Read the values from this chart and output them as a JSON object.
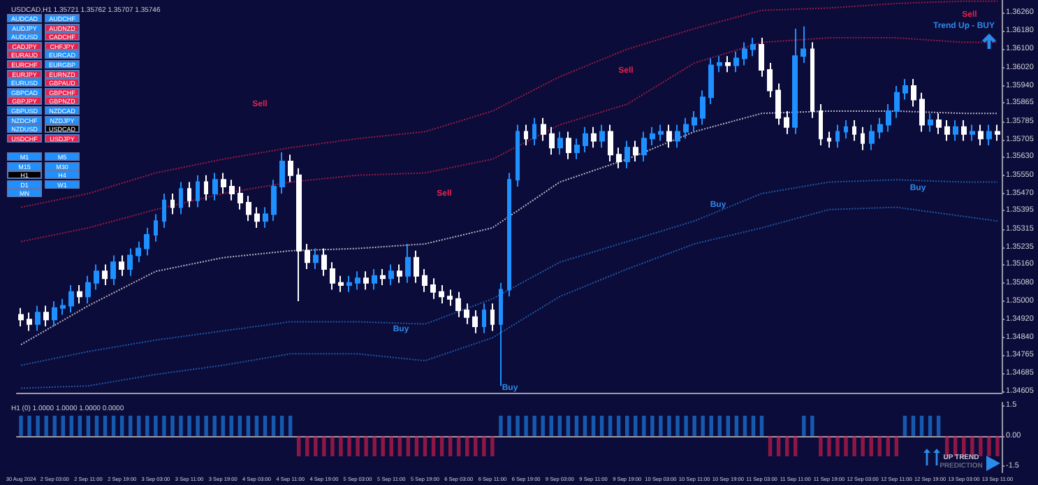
{
  "chart_data": [
    {
      "type": "candlestick",
      "title": "USDCAD,H1 1.35721 1.35762 1.35707 1.35746",
      "categories": [
        "30 Aug 2024",
        null,
        null,
        null,
        "2 Sep 03:00",
        null,
        null,
        null,
        "2 Sep 11:00",
        null,
        null,
        null,
        "2 Sep 19:00",
        null,
        null,
        null,
        "3 Sep 03:00",
        null,
        null,
        null,
        "3 Sep 11:00",
        null,
        null,
        null,
        "3 Sep 19:00",
        null,
        null,
        null,
        "4 Sep 03:00",
        null,
        null,
        null,
        "4 Sep 11:00",
        null,
        null,
        null,
        "4 Sep 19:00",
        null,
        null,
        null,
        "5 Sep 03:00",
        null,
        null,
        null,
        "5 Sep 11:00",
        null,
        null,
        null,
        "5 Sep 19:00",
        null,
        null,
        null,
        "6 Sep 03:00",
        null,
        null,
        null,
        "6 Sep 11:00",
        null,
        null,
        null,
        "6 Sep 19:00",
        null,
        null,
        null,
        "9 Sep 03:00",
        null,
        null,
        null,
        "9 Sep 11:00",
        null,
        null,
        null,
        "9 Sep 19:00",
        null,
        null,
        null,
        "10 Sep 03:00",
        null,
        null,
        null,
        "10 Sep 11:00",
        null,
        null,
        null,
        "10 Sep 19:00",
        null,
        null,
        null,
        "11 Sep 03:00",
        null,
        null,
        null,
        "11 Sep 11:00",
        null,
        null,
        null,
        "11 Sep 19:00",
        null,
        null,
        null,
        "12 Sep 03:00",
        null,
        null,
        null,
        "12 Sep 11:00",
        null,
        null,
        null,
        "12 Sep 19:00",
        null,
        null,
        null,
        "13 Sep 03:00",
        null,
        null,
        null,
        "13 Sep 11:00"
      ],
      "ohlc": [
        [
          1.3494,
          1.3497,
          1.3489,
          1.3492
        ],
        [
          1.3492,
          1.3495,
          1.3487,
          1.349
        ],
        [
          1.349,
          1.3498,
          1.3487,
          1.3495
        ],
        [
          1.3495,
          1.3498,
          1.3489,
          1.3492
        ],
        [
          1.3492,
          1.35,
          1.3489,
          1.3497
        ],
        [
          1.3497,
          1.3501,
          1.3494,
          1.3498
        ],
        [
          1.3498,
          1.3507,
          1.3495,
          1.3504
        ],
        [
          1.3504,
          1.3507,
          1.3499,
          1.3502
        ],
        [
          1.3502,
          1.3511,
          1.3499,
          1.3508
        ],
        [
          1.3508,
          1.3516,
          1.3505,
          1.3513
        ],
        [
          1.3513,
          1.3516,
          1.3507,
          1.351
        ],
        [
          1.351,
          1.352,
          1.3507,
          1.3517
        ],
        [
          1.3517,
          1.352,
          1.3511,
          1.3514
        ],
        [
          1.3514,
          1.3523,
          1.3511,
          1.352
        ],
        [
          1.352,
          1.3526,
          1.3517,
          1.3523
        ],
        [
          1.3523,
          1.3532,
          1.352,
          1.3529
        ],
        [
          1.3529,
          1.3538,
          1.3526,
          1.3535
        ],
        [
          1.3535,
          1.3547,
          1.3532,
          1.3544
        ],
        [
          1.3544,
          1.3547,
          1.3538,
          1.3541
        ],
        [
          1.3541,
          1.3552,
          1.3538,
          1.3549
        ],
        [
          1.3549,
          1.3552,
          1.3541,
          1.3544
        ],
        [
          1.3544,
          1.3555,
          1.3541,
          1.3552
        ],
        [
          1.3552,
          1.3555,
          1.3544,
          1.3547
        ],
        [
          1.3547,
          1.3556,
          1.3544,
          1.3553
        ],
        [
          1.3553,
          1.3556,
          1.3547,
          1.355
        ],
        [
          1.355,
          1.3553,
          1.3544,
          1.3547
        ],
        [
          1.3547,
          1.355,
          1.354,
          1.3543
        ],
        [
          1.3543,
          1.3546,
          1.3535,
          1.3538
        ],
        [
          1.3538,
          1.3541,
          1.3532,
          1.3535
        ],
        [
          1.3535,
          1.3541,
          1.3532,
          1.3538
        ],
        [
          1.3538,
          1.3553,
          1.3535,
          1.355
        ],
        [
          1.355,
          1.3565,
          1.3547,
          1.3561
        ],
        [
          1.3561,
          1.3564,
          1.3552,
          1.3555
        ],
        [
          1.3555,
          1.3558,
          1.35,
          1.3522
        ],
        [
          1.3522,
          1.3525,
          1.3514,
          1.3517
        ],
        [
          1.3517,
          1.3523,
          1.3514,
          1.352
        ],
        [
          1.352,
          1.3523,
          1.3511,
          1.3514
        ],
        [
          1.3514,
          1.3517,
          1.3505,
          1.3508
        ],
        [
          1.3508,
          1.3511,
          1.3504,
          1.3507
        ],
        [
          1.3507,
          1.3511,
          1.3504,
          1.3508
        ],
        [
          1.3508,
          1.3513,
          1.3505,
          1.351
        ],
        [
          1.351,
          1.3513,
          1.3505,
          1.3508
        ],
        [
          1.3508,
          1.3514,
          1.3505,
          1.3511
        ],
        [
          1.3511,
          1.3514,
          1.3507,
          1.351
        ],
        [
          1.351,
          1.3516,
          1.3507,
          1.3513
        ],
        [
          1.3513,
          1.3516,
          1.3508,
          1.3511
        ],
        [
          1.3511,
          1.3525,
          1.3508,
          1.3519
        ],
        [
          1.3519,
          1.3522,
          1.3508,
          1.3511
        ],
        [
          1.3511,
          1.3514,
          1.3504,
          1.3507
        ],
        [
          1.3507,
          1.351,
          1.3501,
          1.3504
        ],
        [
          1.3504,
          1.3507,
          1.3499,
          1.3502
        ],
        [
          1.3502,
          1.3505,
          1.3498,
          1.3501
        ],
        [
          1.3501,
          1.3504,
          1.3493,
          1.3496
        ],
        [
          1.3496,
          1.3499,
          1.349,
          1.3493
        ],
        [
          1.3493,
          1.3496,
          1.3486,
          1.3489
        ],
        [
          1.3489,
          1.3499,
          1.3486,
          1.3496
        ],
        [
          1.3496,
          1.3499,
          1.3487,
          1.349
        ],
        [
          1.349,
          1.3508,
          1.3463,
          1.3505
        ],
        [
          1.3505,
          1.3556,
          1.3502,
          1.3553
        ],
        [
          1.3553,
          1.3577,
          1.355,
          1.3574
        ],
        [
          1.3574,
          1.3577,
          1.3568,
          1.3571
        ],
        [
          1.3571,
          1.358,
          1.3568,
          1.3577
        ],
        [
          1.3577,
          1.358,
          1.357,
          1.3573
        ],
        [
          1.3573,
          1.3576,
          1.3564,
          1.3567
        ],
        [
          1.3567,
          1.3574,
          1.3564,
          1.3571
        ],
        [
          1.3571,
          1.3574,
          1.3562,
          1.3565
        ],
        [
          1.3565,
          1.3571,
          1.3562,
          1.3568
        ],
        [
          1.3568,
          1.3576,
          1.3565,
          1.3573
        ],
        [
          1.3573,
          1.3576,
          1.3567,
          1.357
        ],
        [
          1.357,
          1.3577,
          1.3567,
          1.3574
        ],
        [
          1.3574,
          1.3577,
          1.3561,
          1.3564
        ],
        [
          1.3564,
          1.3567,
          1.3558,
          1.3561
        ],
        [
          1.3561,
          1.357,
          1.3558,
          1.3567
        ],
        [
          1.3567,
          1.357,
          1.3561,
          1.3564
        ],
        [
          1.3564,
          1.3574,
          1.3561,
          1.3571
        ],
        [
          1.3571,
          1.3576,
          1.3568,
          1.3573
        ],
        [
          1.3573,
          1.3577,
          1.357,
          1.3574
        ],
        [
          1.3574,
          1.3577,
          1.3567,
          1.357
        ],
        [
          1.357,
          1.3577,
          1.3567,
          1.3574
        ],
        [
          1.3574,
          1.358,
          1.3571,
          1.3577
        ],
        [
          1.3577,
          1.3583,
          1.3574,
          1.358
        ],
        [
          1.358,
          1.3592,
          1.3577,
          1.3589
        ],
        [
          1.3589,
          1.3606,
          1.3586,
          1.3603
        ],
        [
          1.3603,
          1.3607,
          1.36,
          1.3604
        ],
        [
          1.3604,
          1.3607,
          1.36,
          1.3603
        ],
        [
          1.3603,
          1.3609,
          1.36,
          1.3606
        ],
        [
          1.3606,
          1.3613,
          1.3603,
          1.361
        ],
        [
          1.361,
          1.3615,
          1.3607,
          1.3612
        ],
        [
          1.3612,
          1.3615,
          1.3598,
          1.3601
        ],
        [
          1.3601,
          1.3604,
          1.3589,
          1.3592
        ],
        [
          1.3592,
          1.3595,
          1.3577,
          1.358
        ],
        [
          1.358,
          1.3583,
          1.3573,
          1.3576
        ],
        [
          1.3576,
          1.3619,
          1.3573,
          1.3607
        ],
        [
          1.3607,
          1.362,
          1.3604,
          1.361
        ],
        [
          1.361,
          1.3613,
          1.358,
          1.3583
        ],
        [
          1.3583,
          1.3586,
          1.3568,
          1.3571
        ],
        [
          1.3571,
          1.3574,
          1.3567,
          1.357
        ],
        [
          1.357,
          1.3577,
          1.3567,
          1.3574
        ],
        [
          1.3574,
          1.3579,
          1.3571,
          1.3576
        ],
        [
          1.3576,
          1.3579,
          1.357,
          1.3573
        ],
        [
          1.3573,
          1.3576,
          1.3566,
          1.3569
        ],
        [
          1.3569,
          1.3577,
          1.3566,
          1.3574
        ],
        [
          1.3574,
          1.358,
          1.3571,
          1.3577
        ],
        [
          1.3577,
          1.3586,
          1.3574,
          1.3583
        ],
        [
          1.3583,
          1.3594,
          1.358,
          1.3591
        ],
        [
          1.3591,
          1.3597,
          1.3588,
          1.3594
        ],
        [
          1.3594,
          1.3597,
          1.3585,
          1.3588
        ],
        [
          1.3588,
          1.3591,
          1.3574,
          1.3577
        ],
        [
          1.3577,
          1.3582,
          1.3574,
          1.3579
        ],
        [
          1.3579,
          1.3582,
          1.3573,
          1.3576
        ],
        [
          1.3576,
          1.3579,
          1.357,
          1.3573
        ],
        [
          1.3573,
          1.3579,
          1.357,
          1.3576
        ],
        [
          1.3576,
          1.3579,
          1.357,
          1.3573
        ],
        [
          1.3573,
          1.3577,
          1.357,
          1.3574
        ],
        [
          1.3574,
          1.3577,
          1.3568,
          1.3571
        ],
        [
          1.3571,
          1.3577,
          1.3568,
          1.3574
        ],
        [
          1.3574,
          1.3577,
          1.357,
          1.3573
        ]
      ],
      "colors": [
        "#ffffff",
        "#ffffff",
        "#1e90ff",
        "#ffffff",
        "#1e90ff",
        "#1e90ff",
        "#1e90ff",
        "#ffffff",
        "#1e90ff",
        "#1e90ff",
        "#ffffff",
        "#1e90ff",
        "#ffffff",
        "#1e90ff",
        "#1e90ff",
        "#1e90ff",
        "#1e90ff",
        "#1e90ff",
        "#ffffff",
        "#1e90ff",
        "#ffffff",
        "#1e90ff",
        "#ffffff",
        "#1e90ff",
        "#ffffff",
        "#ffffff",
        "#ffffff",
        "#ffffff",
        "#ffffff",
        "#1e90ff",
        "#1e90ff",
        "#1e90ff",
        "#ffffff",
        "#ffffff",
        "#ffffff",
        "#1e90ff",
        "#ffffff",
        "#ffffff",
        "#ffffff",
        "#1e90ff",
        "#1e90ff",
        "#ffffff",
        "#1e90ff",
        "#ffffff",
        "#1e90ff",
        "#ffffff",
        "#1e90ff",
        "#ffffff",
        "#ffffff",
        "#ffffff",
        "#ffffff",
        "#ffffff",
        "#ffffff",
        "#ffffff",
        "#ffffff",
        "#1e90ff",
        "#ffffff",
        "#1e90ff",
        "#1e90ff",
        "#1e90ff",
        "#ffffff",
        "#1e90ff",
        "#ffffff",
        "#ffffff",
        "#1e90ff",
        "#ffffff",
        "#1e90ff",
        "#1e90ff",
        "#ffffff",
        "#1e90ff",
        "#ffffff",
        "#ffffff",
        "#1e90ff",
        "#ffffff",
        "#1e90ff",
        "#1e90ff",
        "#1e90ff",
        "#ffffff",
        "#1e90ff",
        "#1e90ff",
        "#1e90ff",
        "#1e90ff",
        "#1e90ff",
        "#1e90ff",
        "#ffffff",
        "#1e90ff",
        "#1e90ff",
        "#1e90ff",
        "#ffffff",
        "#ffffff",
        "#ffffff",
        "#ffffff",
        "#1e90ff",
        "#1e90ff",
        "#ffffff",
        "#ffffff",
        "#ffffff",
        "#1e90ff",
        "#1e90ff",
        "#ffffff",
        "#ffffff",
        "#1e90ff",
        "#1e90ff",
        "#1e90ff",
        "#1e90ff",
        "#1e90ff",
        "#ffffff",
        "#ffffff",
        "#1e90ff",
        "#ffffff",
        "#ffffff",
        "#1e90ff",
        "#ffffff",
        "#1e90ff",
        "#ffffff",
        "#1e90ff",
        "#ffffff"
      ],
      "series": [
        {
          "type": "line",
          "color": "#b4b4c8",
          "x": [
            "30 Aug 2024",
            "2 Sep 11:00",
            "3 Sep 03:00",
            "3 Sep 19:00",
            "4 Sep 11:00",
            "5 Sep 03:00",
            "5 Sep 19:00",
            "6 Sep 11:00",
            "9 Sep 03:00",
            "9 Sep 19:00",
            "10 Sep 11:00",
            "11 Sep 03:00",
            "11 Sep 19:00",
            "12 Sep 11:00",
            "13 Sep 03:00",
            "13 Sep 11:00"
          ],
          "values": [
            1.3481,
            1.3498,
            1.3513,
            1.3519,
            1.3522,
            1.3523,
            1.3525,
            1.3532,
            1.3552,
            1.3562,
            1.3574,
            1.3582,
            1.3583,
            1.3583,
            1.3582,
            1.3582
          ]
        },
        {
          "type": "line",
          "color": "#9b1b45",
          "x": [
            "30 Aug 2024",
            "2 Sep 11:00",
            "3 Sep 03:00",
            "3 Sep 19:00",
            "4 Sep 11:00",
            "5 Sep 03:00",
            "5 Sep 19:00",
            "6 Sep 11:00",
            "9 Sep 03:00",
            "9 Sep 19:00",
            "10 Sep 11:00",
            "11 Sep 03:00",
            "11 Sep 19:00",
            "12 Sep 11:00",
            "13 Sep 03:00",
            "13 Sep 11:00"
          ],
          "values": [
            1.3541,
            1.3547,
            1.3556,
            1.3562,
            1.3567,
            1.3571,
            1.3574,
            1.3583,
            1.3598,
            1.361,
            1.3619,
            1.3627,
            1.3628,
            1.363,
            1.3631,
            1.3631
          ]
        },
        {
          "type": "line",
          "color": "#9b1b45",
          "x": [
            "30 Aug 2024",
            "2 Sep 11:00",
            "3 Sep 03:00",
            "3 Sep 19:00",
            "4 Sep 11:00",
            "5 Sep 03:00",
            "5 Sep 19:00",
            "6 Sep 11:00",
            "9 Sep 03:00",
            "9 Sep 19:00",
            "10 Sep 11:00",
            "11 Sep 03:00",
            "11 Sep 19:00",
            "12 Sep 11:00",
            "13 Sep 03:00",
            "13 Sep 11:00"
          ],
          "values": [
            1.3526,
            1.3532,
            1.354,
            1.3547,
            1.3552,
            1.3555,
            1.3556,
            1.3562,
            1.3577,
            1.3586,
            1.3604,
            1.3613,
            1.3615,
            1.3615,
            1.3613,
            1.3613
          ]
        },
        {
          "type": "line",
          "color": "#1d5aa8",
          "x": [
            "30 Aug 2024",
            "2 Sep 11:00",
            "3 Sep 03:00",
            "3 Sep 19:00",
            "4 Sep 11:00",
            "5 Sep 03:00",
            "5 Sep 19:00",
            "6 Sep 11:00",
            "9 Sep 03:00",
            "9 Sep 19:00",
            "10 Sep 11:00",
            "11 Sep 03:00",
            "11 Sep 19:00",
            "12 Sep 11:00",
            "13 Sep 03:00",
            "13 Sep 11:00"
          ],
          "values": [
            1.3472,
            1.3478,
            1.3483,
            1.3487,
            1.3491,
            1.3491,
            1.349,
            1.3501,
            1.3517,
            1.3526,
            1.3535,
            1.3547,
            1.3552,
            1.3553,
            1.3552,
            1.3552
          ]
        },
        {
          "type": "line",
          "color": "#1d5aa8",
          "x": [
            "30 Aug 2024",
            "2 Sep 11:00",
            "3 Sep 03:00",
            "3 Sep 19:00",
            "4 Sep 11:00",
            "5 Sep 03:00",
            "5 Sep 19:00",
            "6 Sep 11:00",
            "9 Sep 03:00",
            "9 Sep 19:00",
            "10 Sep 11:00",
            "11 Sep 03:00",
            "11 Sep 19:00",
            "12 Sep 11:00",
            "13 Sep 03:00",
            "13 Sep 11:00"
          ],
          "values": [
            1.3462,
            1.3463,
            1.3468,
            1.3472,
            1.3477,
            1.3477,
            1.3474,
            1.3484,
            1.3502,
            1.3514,
            1.3525,
            1.3532,
            1.354,
            1.3541,
            1.3537,
            1.3535
          ]
        }
      ],
      "line_style": "dotted",
      "marker": "none",
      "ylim": [
        1.346,
        1.36315
      ],
      "yticks": [
        {
          "value": 1.3626,
          "label": "1.36260"
        },
        {
          "value": 1.3618,
          "label": "1.36180"
        },
        {
          "value": 1.361,
          "label": "1.36100"
        },
        {
          "value": 1.3602,
          "label": "1.36020"
        },
        {
          "value": 1.3594,
          "label": "1.35940"
        },
        {
          "value": 1.35865,
          "label": "1.35865"
        },
        {
          "value": 1.35785,
          "label": "1.35785"
        },
        {
          "value": 1.35705,
          "label": "1.35705"
        },
        {
          "value": 1.3563,
          "label": "1.35630"
        },
        {
          "value": 1.3555,
          "label": "1.35550"
        },
        {
          "value": 1.3547,
          "label": "1.35470"
        },
        {
          "value": 1.35395,
          "label": "1.35395"
        },
        {
          "value": 1.35315,
          "label": "1.35315"
        },
        {
          "value": 1.35235,
          "label": "1.35235"
        },
        {
          "value": 1.3516,
          "label": "1.35160"
        },
        {
          "value": 1.3508,
          "label": "1.35080"
        },
        {
          "value": 1.35,
          "label": "1.35000"
        },
        {
          "value": 1.3492,
          "label": "1.34920"
        },
        {
          "value": 1.3484,
          "label": "1.34840"
        },
        {
          "value": 1.34765,
          "label": "1.34765"
        },
        {
          "value": 1.34685,
          "label": "1.34685"
        },
        {
          "value": 1.34605,
          "label": "1.34605"
        }
      ],
      "tick_labels": "y",
      "annotations": [
        "Sell",
        "Sell",
        "Sell",
        "Sell",
        "Buy",
        "Buy",
        "Buy",
        "Buy",
        "Trend Up - BUY"
      ]
    },
    {
      "type": "bar",
      "title": "H1 (0) 1.0000 1.0000 1.0000 0.0000",
      "categories": [
        "30 Aug 2024",
        null,
        null,
        null,
        "2 Sep 03:00",
        null,
        null,
        null,
        "2 Sep 11:00",
        null,
        null,
        null,
        "2 Sep 19:00",
        null,
        null,
        null,
        "3 Sep 03:00",
        null,
        null,
        null,
        "3 Sep 11:00",
        null,
        null,
        null,
        "3 Sep 19:00",
        null,
        null,
        null,
        "4 Sep 03:00",
        null,
        null,
        null,
        "4 Sep 11:00",
        null,
        null,
        null,
        "4 Sep 19:00",
        null,
        null,
        null,
        "5 Sep 03:00",
        null,
        null,
        null,
        "5 Sep 11:00",
        null,
        null,
        null,
        "5 Sep 19:00",
        null,
        null,
        null,
        "6 Sep 03:00",
        null,
        null,
        null,
        "6 Sep 11:00",
        null,
        null,
        null,
        "6 Sep 19:00",
        null,
        null,
        null,
        "9 Sep 03:00",
        null,
        null,
        null,
        "9 Sep 11:00",
        null,
        null,
        null,
        "9 Sep 19:00",
        null,
        null,
        null,
        "10 Sep 03:00",
        null,
        null,
        null,
        "10 Sep 11:00",
        null,
        null,
        null,
        "10 Sep 19:00",
        null,
        null,
        null,
        "11 Sep 03:00",
        null,
        null,
        null,
        "11 Sep 11:00",
        null,
        null,
        null,
        "11 Sep 19:00",
        null,
        null,
        null,
        "12 Sep 03:00",
        null,
        null,
        null,
        "12 Sep 11:00",
        null,
        null,
        null,
        "12 Sep 19:00",
        null,
        null,
        null,
        "13 Sep 03:00",
        null,
        null,
        null,
        "13 Sep 11:00"
      ],
      "values": [
        1,
        1,
        1,
        1,
        1,
        1,
        1,
        1,
        1,
        1,
        1,
        1,
        1,
        1,
        1,
        1,
        1,
        1,
        1,
        1,
        1,
        1,
        1,
        1,
        1,
        1,
        1,
        1,
        1,
        1,
        1,
        1,
        1,
        -1,
        -1,
        -1,
        -1,
        -1,
        -1,
        -1,
        -1,
        -1,
        -1,
        -1,
        -1,
        -1,
        -1,
        -1,
        -1,
        -1,
        -1,
        -1,
        -1,
        -1,
        -1,
        -1,
        -1,
        1,
        1,
        1,
        1,
        1,
        1,
        1,
        1,
        1,
        1,
        1,
        1,
        1,
        1,
        1,
        1,
        1,
        1,
        1,
        1,
        1,
        1,
        1,
        1,
        1,
        1,
        1,
        1,
        1,
        1,
        1,
        1,
        -1,
        -1,
        -1,
        -1,
        1,
        1,
        -1,
        -1,
        -1,
        -1,
        -1,
        -1,
        -1,
        -1,
        -1,
        -1,
        1,
        1,
        1,
        1,
        1,
        -1,
        -1,
        -1,
        -1,
        -1,
        -1,
        -1
      ],
      "colors": [
        "#1e90ff",
        "#1e90ff",
        "#1e90ff",
        "#1e90ff",
        "#1e90ff",
        "#1e90ff",
        "#1e90ff",
        "#1e90ff",
        "#1e90ff",
        "#1e90ff",
        "#1e90ff",
        "#1e90ff",
        "#1e90ff",
        "#1e90ff",
        "#1e90ff",
        "#1e90ff",
        "#1e90ff",
        "#1e90ff",
        "#1e90ff",
        "#1e90ff",
        "#1e90ff",
        "#1e90ff",
        "#1e90ff",
        "#1e90ff",
        "#1e90ff",
        "#1e90ff",
        "#1e90ff",
        "#1e90ff",
        "#1e90ff",
        "#1e90ff",
        "#1e90ff",
        "#1e90ff",
        "#1e90ff",
        "#e8204c",
        "#e8204c",
        "#e8204c",
        "#e8204c",
        "#e8204c",
        "#e8204c",
        "#e8204c",
        "#e8204c",
        "#e8204c",
        "#e8204c",
        "#e8204c",
        "#e8204c",
        "#e8204c",
        "#e8204c",
        "#e8204c",
        "#e8204c",
        "#e8204c",
        "#e8204c",
        "#e8204c",
        "#e8204c",
        "#e8204c",
        "#e8204c",
        "#e8204c",
        "#e8204c",
        "#1e90ff",
        "#1e90ff",
        "#1e90ff",
        "#1e90ff",
        "#1e90ff",
        "#1e90ff",
        "#1e90ff",
        "#1e90ff",
        "#1e90ff",
        "#1e90ff",
        "#1e90ff",
        "#1e90ff",
        "#1e90ff",
        "#1e90ff",
        "#1e90ff",
        "#1e90ff",
        "#1e90ff",
        "#1e90ff",
        "#1e90ff",
        "#1e90ff",
        "#1e90ff",
        "#1e90ff",
        "#1e90ff",
        "#1e90ff",
        "#1e90ff",
        "#1e90ff",
        "#1e90ff",
        "#1e90ff",
        "#1e90ff",
        "#1e90ff",
        "#1e90ff",
        "#1e90ff",
        "#e8204c",
        "#e8204c",
        "#e8204c",
        "#e8204c",
        "#1e90ff",
        "#1e90ff",
        "#e8204c",
        "#e8204c",
        "#e8204c",
        "#e8204c",
        "#e8204c",
        "#e8204c",
        "#e8204c",
        "#e8204c",
        "#e8204c",
        "#e8204c",
        "#1e90ff",
        "#1e90ff",
        "#1e90ff",
        "#1e90ff",
        "#1e90ff",
        "#e8204c",
        "#e8204c",
        "#e8204c",
        "#e8204c",
        "#e8204c",
        "#e8204c",
        "#e8204c"
      ],
      "ylim": [
        -1.8,
        1.65
      ],
      "yticks": [
        1.5,
        {
          "value": 0,
          "label": "0.00"
        },
        -1.5
      ],
      "annotations": [
        "UP TREND",
        "PREDICTION"
      ]
    },
    {
      "type": "other",
      "annotations": [
        "AUDCAD",
        "AUDCHF",
        "AUDJPY",
        "AUDNZD",
        "AUDUSD",
        "CADCHF",
        "CADJPY",
        "CHFJPY",
        "EURAUD",
        "EURCAD",
        "EURCHF",
        "EURGBP",
        "EURJPY",
        "EURNZD",
        "EURUSD",
        "GBPAUD",
        "GBPCAD",
        "GBPCHF",
        "GBPJPY",
        "GBPNZD",
        "GBPUSD",
        "NZDCAD",
        "NZDCHF",
        "NZDJPY",
        "NZDUSD",
        "USDCAD",
        "USDCHF",
        "USDJPY"
      ],
      "colors": [
        "#1e90ff",
        "#1e90ff",
        "#1e90ff",
        "#e8204c",
        "#1e90ff",
        "#e8204c",
        "#e8204c",
        "#e8204c",
        "#e8204c",
        "#1e90ff",
        "#e8204c",
        "#1e90ff",
        "#e8204c",
        "#e8204c",
        "#1e90ff",
        "#e8204c",
        "#1e90ff",
        "#e8204c",
        "#e8204c",
        "#e8204c",
        "#1e90ff",
        "#1e90ff",
        "#1e90ff",
        "#1e90ff",
        "#1e90ff",
        "#000000",
        "#e8204c",
        "#e8204c"
      ]
    },
    {
      "type": "other",
      "annotations": [
        "M1",
        "M5",
        "M15",
        "M30",
        "H1",
        "H4",
        "D1",
        "W1",
        "MN"
      ],
      "colors": [
        "#1e90ff",
        "#1e90ff",
        "#1e90ff",
        "#1e90ff",
        "#000000",
        "#1e90ff",
        "#1e90ff",
        "#1e90ff",
        "#1e90ff"
      ]
    }
  ]
}
